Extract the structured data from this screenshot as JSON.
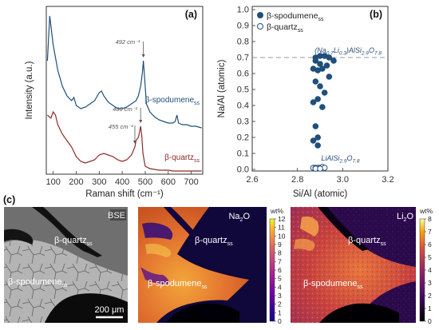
{
  "figure": {
    "panel_labels": {
      "a": "(a)",
      "b": "(b)",
      "c": "(c)"
    }
  },
  "colors": {
    "spodumene": "#1f4f7a",
    "quartz": "#8e2a2a",
    "axis": "#333333",
    "dashed": "#999999"
  },
  "chart_data": [
    {
      "id": "a",
      "type": "line",
      "xlabel": "Raman shift (cm⁻¹)",
      "ylabel": "Intensity (a.u.)",
      "xlim": [
        70,
        750
      ],
      "xticks": [
        100,
        200,
        300,
        400,
        500,
        600,
        700
      ],
      "yticks_shown": false,
      "grid": false,
      "series": [
        {
          "name": "β-spodumene",
          "name_sub": "ss",
          "color": "#1f4f7a",
          "x": [
            75,
            85,
            100,
            110,
            120,
            140,
            160,
            180,
            190,
            200,
            220,
            240,
            260,
            280,
            300,
            310,
            320,
            340,
            360,
            380,
            400,
            420,
            440,
            460,
            470,
            480,
            488,
            492,
            496,
            505,
            520,
            540,
            560,
            580,
            600,
            620,
            630,
            638,
            645,
            660,
            680,
            700,
            720,
            745
          ],
          "y": [
            0.72,
            1.0,
            0.82,
            0.74,
            0.66,
            0.56,
            0.5,
            0.47,
            0.49,
            0.44,
            0.42,
            0.43,
            0.45,
            0.47,
            0.52,
            0.53,
            0.5,
            0.46,
            0.44,
            0.42,
            0.42,
            0.43,
            0.45,
            0.47,
            0.5,
            0.56,
            0.65,
            0.72,
            0.64,
            0.45,
            0.4,
            0.37,
            0.35,
            0.34,
            0.33,
            0.33,
            0.34,
            0.38,
            0.33,
            0.32,
            0.32,
            0.31,
            0.31,
            0.3
          ]
        },
        {
          "name": "β-quartz",
          "name_sub": "ss",
          "color": "#8e2a2a",
          "x": [
            75,
            90,
            100,
            110,
            120,
            140,
            160,
            180,
            200,
            220,
            240,
            260,
            280,
            300,
            320,
            340,
            360,
            380,
            400,
            420,
            440,
            455,
            460,
            470,
            475,
            480,
            485,
            490,
            500,
            520,
            540,
            560,
            580,
            600,
            620,
            640,
            660,
            680,
            700,
            720,
            745
          ],
          "y": [
            0.38,
            0.36,
            0.4,
            0.38,
            0.32,
            0.26,
            0.22,
            0.18,
            0.12,
            0.09,
            0.08,
            0.09,
            0.1,
            0.13,
            0.14,
            0.13,
            0.12,
            0.1,
            0.09,
            0.1,
            0.13,
            0.18,
            0.22,
            0.24,
            0.27,
            0.31,
            0.25,
            0.14,
            0.06,
            0.045,
            0.04,
            0.035,
            0.035,
            0.035,
            0.03,
            0.03,
            0.03,
            0.03,
            0.03,
            0.03,
            0.03
          ]
        }
      ],
      "annotations": [
        {
          "text": "492 cm⁻¹",
          "x": 492,
          "series": 0
        },
        {
          "text": "480 cm⁻¹",
          "x": 480,
          "series": 1
        },
        {
          "text": "455 cm⁻¹",
          "x": 455,
          "series": 1
        }
      ]
    },
    {
      "id": "b",
      "type": "scatter",
      "xlabel": "Si/Al (atomic)",
      "ylabel": "Na/Al (atomic)",
      "xlim": [
        2.6,
        3.2
      ],
      "ylim": [
        0,
        1.0
      ],
      "xticks": [
        2.6,
        2.8,
        3.0,
        3.2
      ],
      "yticks": [
        0.0,
        0.1,
        0.2,
        0.3,
        0.4,
        0.5,
        0.6,
        0.7,
        0.8,
        0.9,
        1.0
      ],
      "legend": "top-left",
      "grid": false,
      "reference_line": {
        "y": 0.7
      },
      "series": [
        {
          "name": "β-spodumene",
          "name_sub": "ss",
          "filled": true,
          "color": "#1f4f7a",
          "x": [
            2.88,
            2.9,
            2.92,
            2.94,
            2.88,
            2.9,
            2.93,
            2.96,
            2.87,
            2.89,
            2.91,
            2.94,
            2.88,
            2.9,
            2.92,
            2.89,
            2.87,
            2.91,
            2.88,
            2.89,
            2.87,
            2.89
          ],
          "y": [
            0.7,
            0.71,
            0.71,
            0.7,
            0.68,
            0.66,
            0.65,
            0.68,
            0.63,
            0.62,
            0.63,
            0.58,
            0.55,
            0.52,
            0.48,
            0.44,
            0.42,
            0.39,
            0.27,
            0.2,
            0.18,
            0.15
          ]
        },
        {
          "name": "β-quartz",
          "name_sub": "ss",
          "filled": false,
          "color": "#1f4f7a",
          "x": [
            2.87,
            2.88,
            2.89,
            2.9,
            2.91,
            2.92,
            2.88,
            2.9
          ],
          "y": [
            0.01,
            0.01,
            0.01,
            0.01,
            0.015,
            0.01,
            0.005,
            0.005
          ]
        }
      ],
      "annotations": [
        {
          "text": "(Na₀.₇Li₀.₃)AlSi₂.₉O₇.₈",
          "pre": "(Na",
          "s1": "0.7",
          "m1": "Li",
          "s2": "0.3",
          "m2": ")AlSi",
          "s3": "2.9",
          "m3": "O",
          "s4": "7.8"
        },
        {
          "text": "LiAlSi₂.₉O₇.₈",
          "pre": "LiAlSi",
          "s1": "2.9",
          "m1": "O",
          "s2": "7.8"
        }
      ]
    }
  ],
  "images": {
    "bse": {
      "tag": "BSE",
      "region_top": "β-quartz",
      "region_top_sub": "ss",
      "region_bottom": "β-spodumene",
      "region_bottom_sub": "ss",
      "scalebar": "200 μm"
    },
    "na2o": {
      "tag_pre": "Na",
      "tag_sub": "2",
      "tag_post": "O",
      "unit": "wt%",
      "ticks": [
        0,
        1,
        2,
        3,
        4,
        5,
        6,
        7,
        8,
        9,
        10,
        11,
        12
      ],
      "region_top": "β-quartz",
      "region_top_sub": "ss",
      "region_bottom": "β-spodumene",
      "region_bottom_sub": "ss"
    },
    "li2o": {
      "tag_pre": "Li",
      "tag_sub": "2",
      "tag_post": "O",
      "unit": "wt%",
      "ticks": [
        0,
        1,
        2,
        3,
        4,
        5,
        6,
        7,
        8
      ],
      "region_top": "β-quartz",
      "region_top_sub": "ss",
      "region_bottom": "β-spodumene",
      "region_bottom_sub": "ss"
    }
  }
}
